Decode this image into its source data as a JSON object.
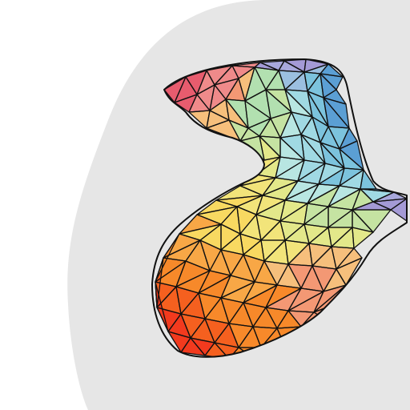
{
  "icon": {
    "name": "triangle-mesh-blob-icon",
    "backdrop_color": "#e6e6e6",
    "edge_color": "#111111",
    "palette": {
      "red": "#f23a1e",
      "red_orange": "#f5601f",
      "orange": "#f7892a",
      "light_orange": "#f8a746",
      "peach": "#f6bf7c",
      "salmon": "#f39874",
      "yellow": "#f8d961",
      "pale_yellow": "#f2e47a",
      "lime": "#e3e88a",
      "light_green": "#c5e3a2",
      "mint": "#b2e0b0",
      "pale_cyan": "#b8e6e2",
      "light_blue": "#a0d9e3",
      "sky_blue": "#7cc3dd",
      "blue": "#5b9fd4",
      "pale_blue": "#9bbfe0",
      "lavender": "#a8a8dc",
      "violet": "#a49ad6",
      "pink": "#ef8a8a",
      "rose": "#e75c6e"
    }
  }
}
